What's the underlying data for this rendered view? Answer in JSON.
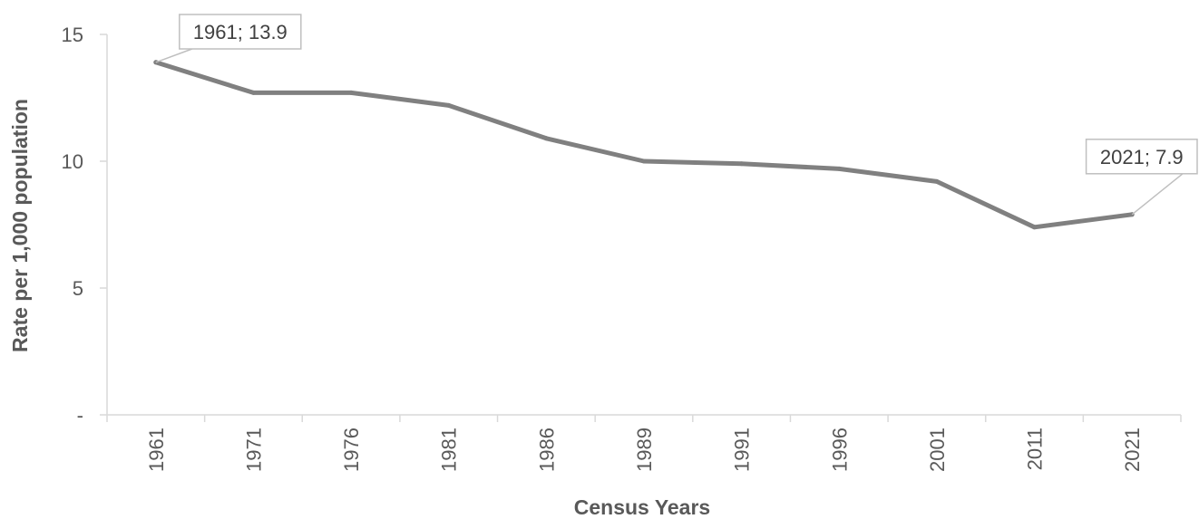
{
  "chart_data": {
    "type": "line",
    "title": "",
    "xlabel": "Census Years",
    "ylabel": "Rate per 1,000 population",
    "categories": [
      "1961",
      "1971",
      "1976",
      "1981",
      "1986",
      "1989",
      "1991",
      "1996",
      "2001",
      "2011",
      "2021"
    ],
    "series": [
      {
        "values": [
          13.9,
          12.7,
          12.7,
          12.2,
          10.9,
          10.0,
          9.9,
          9.7,
          9.2,
          7.4,
          7.9
        ],
        "color": "#808080"
      }
    ],
    "y_ticks": [
      {
        "value": 0,
        "label": "-"
      },
      {
        "value": 5,
        "label": "5"
      },
      {
        "value": 10,
        "label": "10"
      },
      {
        "value": 15,
        "label": "15"
      }
    ],
    "ylim": [
      0,
      15
    ],
    "grid": false,
    "legend": "none",
    "annotations": [
      {
        "category": "1961",
        "text": "1961; 13.9"
      },
      {
        "category": "2021",
        "text": "2021; 7.9"
      }
    ],
    "colors": {
      "line": "#808080",
      "axis": "#d9d9d9",
      "text": "#595959",
      "callout_border": "#bfbfbf"
    }
  }
}
